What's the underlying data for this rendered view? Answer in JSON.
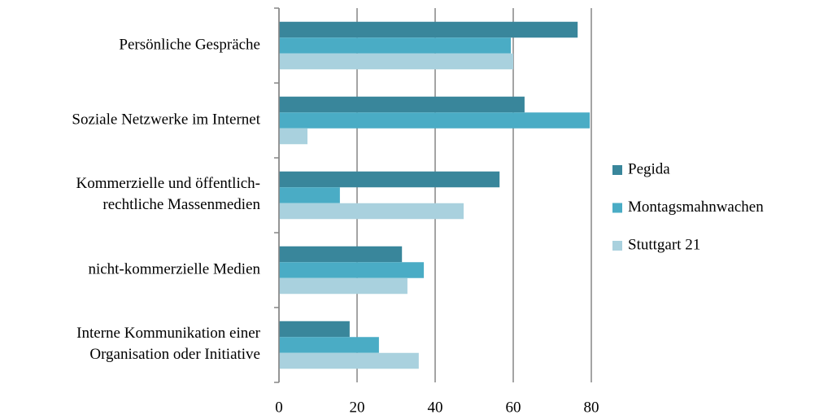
{
  "chart_data": {
    "type": "barh",
    "categories": [
      "Persönliche Gespräche",
      "Soziale Netzwerke im Internet",
      "Kommerzielle und öffentlich-\nrechtliche Massenmedien",
      "nicht-kommerzielle Medien",
      "Interne Kommunikation einer\nOrganisation oder Initiative"
    ],
    "series": [
      {
        "name": "Pegida",
        "color": "#39869b",
        "values": [
          76.5,
          62.9,
          56.5,
          31.5,
          18.1
        ]
      },
      {
        "name": "Montagsmahnwachen",
        "color": "#4aacc5",
        "values": [
          59.4,
          79.6,
          15.6,
          37.1,
          25.6
        ]
      },
      {
        "name": "Stuttgart 21",
        "color": "#a9d1de",
        "values": [
          60,
          7.3,
          47.3,
          32.9,
          35.8
        ]
      }
    ],
    "xlim": [
      0,
      80
    ],
    "xticks": [
      0,
      20,
      40,
      60,
      80
    ],
    "grid": true,
    "legend": "right"
  }
}
